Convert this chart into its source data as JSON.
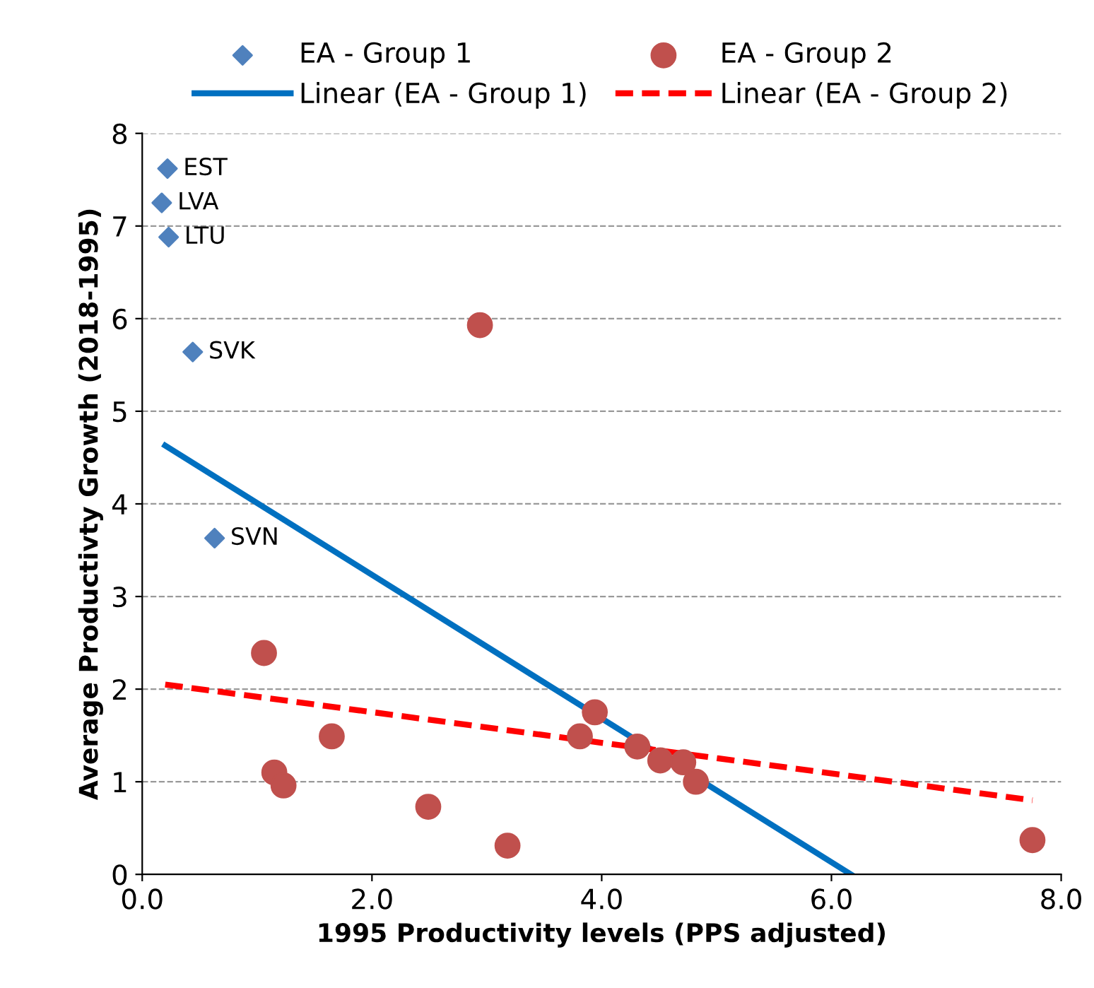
{
  "chart_data": {
    "type": "scatter",
    "xlabel": "1995 Productivity levels (PPS adjusted)",
    "ylabel": "Average Productivty Growth (2018-1995)",
    "xlim": [
      0,
      8
    ],
    "ylim": [
      0,
      8
    ],
    "xticks": [
      {
        "value": 0,
        "label": "0.0"
      },
      {
        "value": 2,
        "label": "2.0"
      },
      {
        "value": 4,
        "label": "4.0"
      },
      {
        "value": 6,
        "label": "6.0"
      },
      {
        "value": 8,
        "label": "8.0"
      }
    ],
    "yticks": [
      0,
      1,
      2,
      3,
      4,
      5,
      6,
      7,
      8
    ],
    "grid": "y",
    "legend": "top",
    "series": [
      {
        "name": "EA - Group 1",
        "marker": "diamond",
        "color": "#4f81bd",
        "x": [
          0.22,
          0.17,
          0.23,
          0.44,
          0.63
        ],
        "values": [
          7.62,
          7.25,
          6.88,
          5.64,
          3.63
        ]
      },
      {
        "name": "EA - Group 2",
        "marker": "circle",
        "color": "#c0504d",
        "x": [
          2.94,
          1.06,
          1.15,
          1.23,
          1.65,
          2.49,
          3.18,
          3.81,
          3.94,
          4.31,
          4.51,
          4.71,
          4.82,
          7.75
        ],
        "values": [
          5.93,
          2.39,
          1.1,
          0.96,
          1.49,
          0.73,
          0.31,
          1.49,
          1.75,
          1.38,
          1.23,
          1.21,
          1.0,
          0.37
        ]
      },
      {
        "name": "Linear (EA - Group 1)",
        "type": "line",
        "line_style": "solid",
        "color": "#0070c0",
        "x": [
          0.2,
          6.17
        ],
        "values": [
          4.63,
          0
        ]
      },
      {
        "name": "Linear (EA - Group 2)",
        "type": "line",
        "line_style": "dashed",
        "color": "#ff0000",
        "x": [
          0.2,
          7.75
        ],
        "values": [
          2.05,
          0.8
        ]
      }
    ],
    "annotations": [
      {
        "text": "EST",
        "x": 0.22,
        "y": 7.62
      },
      {
        "text": "LVA",
        "x": 0.17,
        "y": 7.25
      },
      {
        "text": "LTU",
        "x": 0.23,
        "y": 6.88
      },
      {
        "text": "SVK",
        "x": 0.44,
        "y": 5.64
      },
      {
        "text": "SVN",
        "x": 0.63,
        "y": 3.63
      }
    ]
  }
}
